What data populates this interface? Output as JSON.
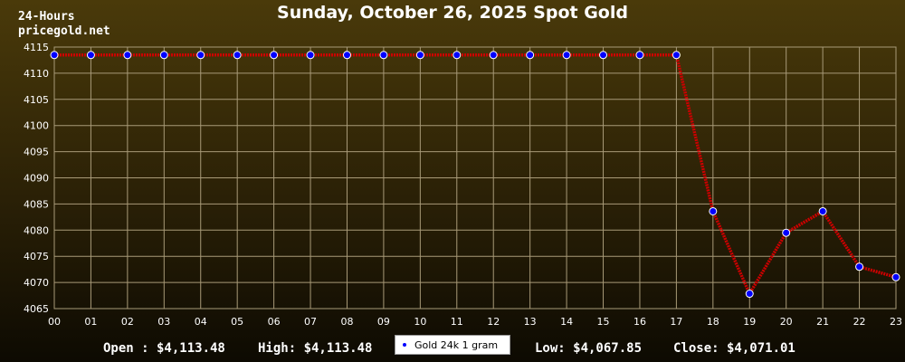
{
  "header": {
    "brand_line1": "24-Hours",
    "brand_line2": "pricegold.net",
    "title": "Sunday, October 26, 2025 Spot Gold"
  },
  "footer": {
    "open": "Open : $4,113.48",
    "high": "High: $4,113.48",
    "low": "Low: $4,067.85",
    "close": "Close: $4,071.01"
  },
  "colors": {
    "line": "#cc0000",
    "marker": "#0000ff",
    "grid": "#a89a78"
  },
  "chart_data": {
    "type": "line",
    "title": "Sunday, October 26, 2025 Spot Gold",
    "x": [
      "00",
      "01",
      "02",
      "03",
      "04",
      "05",
      "06",
      "07",
      "08",
      "09",
      "10",
      "11",
      "12",
      "13",
      "14",
      "15",
      "16",
      "17",
      "18",
      "19",
      "20",
      "21",
      "22",
      "23"
    ],
    "y_ticks": [
      4065,
      4070,
      4075,
      4080,
      4085,
      4090,
      4095,
      4100,
      4105,
      4110,
      4115
    ],
    "ylim": [
      4065,
      4115
    ],
    "grid": true,
    "legend_position": "bottom-center",
    "series": [
      {
        "name": "Gold 24k 1 gram",
        "values": [
          4113.48,
          4113.48,
          4113.48,
          4113.48,
          4113.48,
          4113.48,
          4113.48,
          4113.48,
          4113.48,
          4113.48,
          4113.48,
          4113.48,
          4113.48,
          4113.48,
          4113.48,
          4113.48,
          4113.48,
          4113.48,
          4083.6,
          4067.85,
          4079.5,
          4083.6,
          4073.0,
          4071.01
        ]
      }
    ]
  }
}
